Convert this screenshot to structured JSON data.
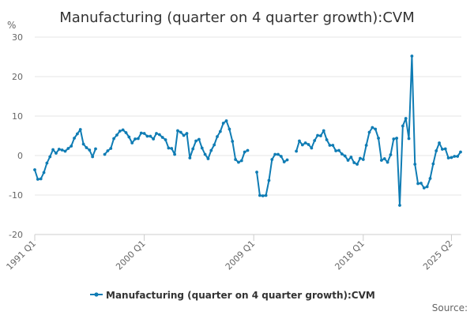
{
  "colors": {
    "series": "#0f7cb4",
    "grid": "#e6e6e6",
    "axis": "#cccccc",
    "text": "#333333",
    "muted": "#666666"
  },
  "chart_data": {
    "type": "line",
    "title": "Manufacturing (quarter on 4 quarter growth):CVM",
    "ylabel": "%",
    "ylim": [
      -20,
      30
    ],
    "yticks": [
      -20,
      -10,
      0,
      10,
      20,
      30
    ],
    "xtick_labels": [
      "1991 Q1",
      "2000 Q1",
      "2009 Q1",
      "2018 Q1",
      "2025 Q2"
    ],
    "grid": true,
    "legend": "bottom",
    "credits": "Source:",
    "series": [
      {
        "name": "Manufacturing (quarter on 4 quarter growth):CVM",
        "x_start": "1991 Q1",
        "x_end": "2025 Q2",
        "values": [
          -3.6,
          -6.0,
          -5.9,
          -4.3,
          -1.9,
          -0.3,
          1.5,
          0.6,
          1.6,
          1.4,
          1.1,
          1.8,
          2.4,
          4.4,
          5.5,
          6.6,
          2.9,
          2.0,
          1.4,
          -0.3,
          1.7,
          null,
          null,
          0.3,
          1.2,
          1.8,
          4.3,
          5.2,
          6.2,
          6.5,
          5.8,
          4.7,
          3.2,
          4.2,
          4.3,
          5.7,
          5.6,
          4.9,
          4.9,
          4.2,
          5.6,
          5.3,
          4.6,
          4.0,
          1.9,
          1.8,
          0.3,
          6.3,
          5.9,
          5.1,
          5.6,
          -0.6,
          1.7,
          3.7,
          4.1,
          1.9,
          0.3,
          -0.8,
          1.3,
          2.7,
          4.8,
          6.1,
          8.2,
          8.8,
          6.7,
          3.6,
          -1.0,
          -1.7,
          -1.3,
          0.9,
          1.3,
          null,
          null,
          -4.2,
          -10.1,
          -10.2,
          -10.1,
          -6.3,
          -1.0,
          0.3,
          0.3,
          -0.2,
          -1.6,
          -1.1,
          null,
          null,
          1.1,
          3.7,
          2.7,
          3.2,
          2.8,
          1.9,
          3.8,
          5.1,
          5.0,
          6.3,
          4.0,
          2.6,
          2.6,
          1.2,
          1.3,
          0.4,
          -0.1,
          -1.2,
          -0.4,
          -1.8,
          -2.2,
          -0.7,
          -1.0,
          2.6,
          5.9,
          7.1,
          6.7,
          4.4,
          -1.2,
          -0.8,
          -1.7,
          0.2,
          4.2,
          4.4,
          -12.6,
          7.5,
          9.4,
          4.3,
          25.2,
          -2.2,
          -7.1,
          -7.0,
          -8.2,
          -7.9,
          -5.8,
          -2.1,
          1.2,
          3.2,
          1.6,
          1.7,
          -0.6,
          -0.5,
          -0.2,
          -0.2,
          0.9
        ]
      }
    ]
  }
}
